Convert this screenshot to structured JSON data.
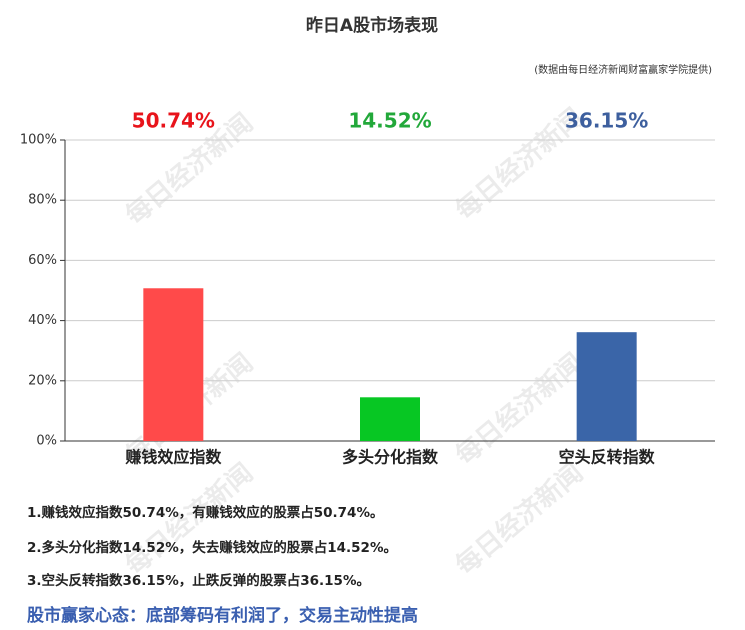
{
  "chart_data": {
    "type": "bar",
    "title": "昨日A股市场表现",
    "subtitle": "(数据由每日经济新闻财富赢家学院提供)",
    "categories": [
      "赚钱效应指数",
      "多头分化指数",
      "空头反转指数"
    ],
    "values": [
      50.74,
      14.52,
      36.15
    ],
    "value_labels": [
      "50.74%",
      "14.52%",
      "36.15%"
    ],
    "colors": [
      "#ff4a4a",
      "#07c723",
      "#3a65a8"
    ],
    "value_label_colors": [
      "#e8141b",
      "#22a83a",
      "#3d5f9e"
    ],
    "ylim": [
      0,
      100
    ],
    "yticks": [
      {
        "value": 0,
        "label": "0%"
      },
      {
        "value": 20,
        "label": "20%"
      },
      {
        "value": 40,
        "label": "40%"
      },
      {
        "value": 60,
        "label": "60%"
      },
      {
        "value": 80,
        "label": "80%"
      },
      {
        "value": 100,
        "label": "100%"
      }
    ],
    "grid": true,
    "watermark": "每日经济新闻"
  },
  "notes": [
    "1.赚钱效应指数50.74%，有赚钱效应的股票占50.74%。",
    "2.多头分化指数14.52%，失去赚钱效应的股票占14.52%。",
    "3.空头反转指数36.15%，止跌反弹的股票占36.15%。"
  ],
  "conclusion": "股市赢家心态：底部筹码有利润了，交易主动性提高"
}
